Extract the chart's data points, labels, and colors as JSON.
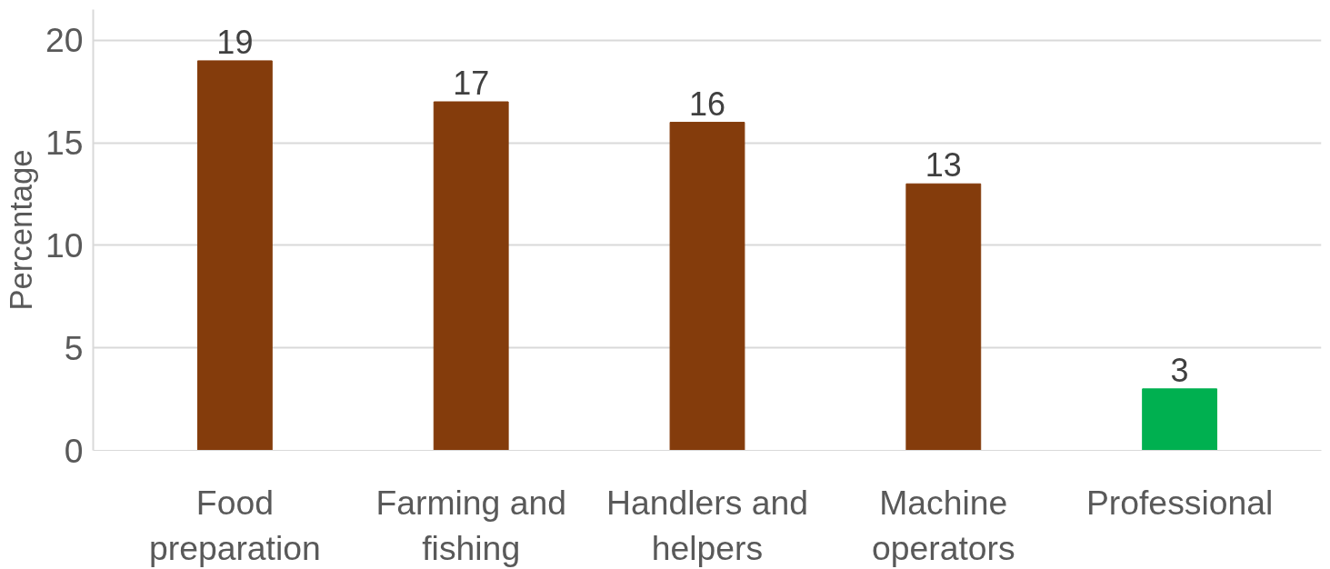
{
  "chart_data": {
    "type": "bar",
    "ylabel": "Percentage",
    "categories": [
      "Food\npreparation",
      "Farming and\nfishing",
      "Handlers and\nhelpers",
      "Machine\noperators",
      "Professional"
    ],
    "values": [
      19,
      17,
      16,
      13,
      3
    ],
    "colors": [
      "#843c0c",
      "#843c0c",
      "#843c0c",
      "#843c0c",
      "#00b050"
    ],
    "ylim": [
      0,
      21.5
    ],
    "yticks": [
      0,
      5,
      10,
      15,
      20
    ],
    "grid": "y",
    "data_labels": true
  }
}
